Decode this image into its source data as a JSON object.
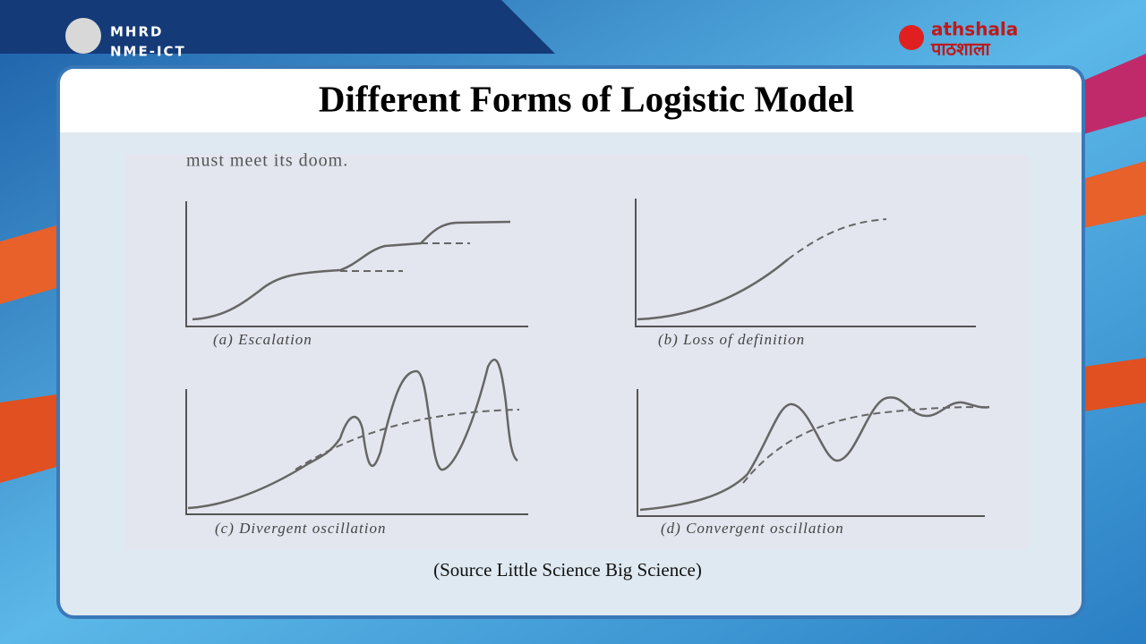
{
  "header": {
    "org_line1": "MHRD",
    "org_line2": "NME-ICT",
    "logo_latin": "athshala",
    "logo_hindi": "पाठशाला"
  },
  "slide": {
    "title": "Different Forms of Logistic Model",
    "figure": {
      "top_text": "must meet its doom.",
      "panels": [
        "(a) Escalation",
        "(b) Loss of definition",
        "(c) Divergent oscillation",
        "(d) Convergent oscillation"
      ]
    },
    "source": "(Source Little Science Big Science)"
  }
}
